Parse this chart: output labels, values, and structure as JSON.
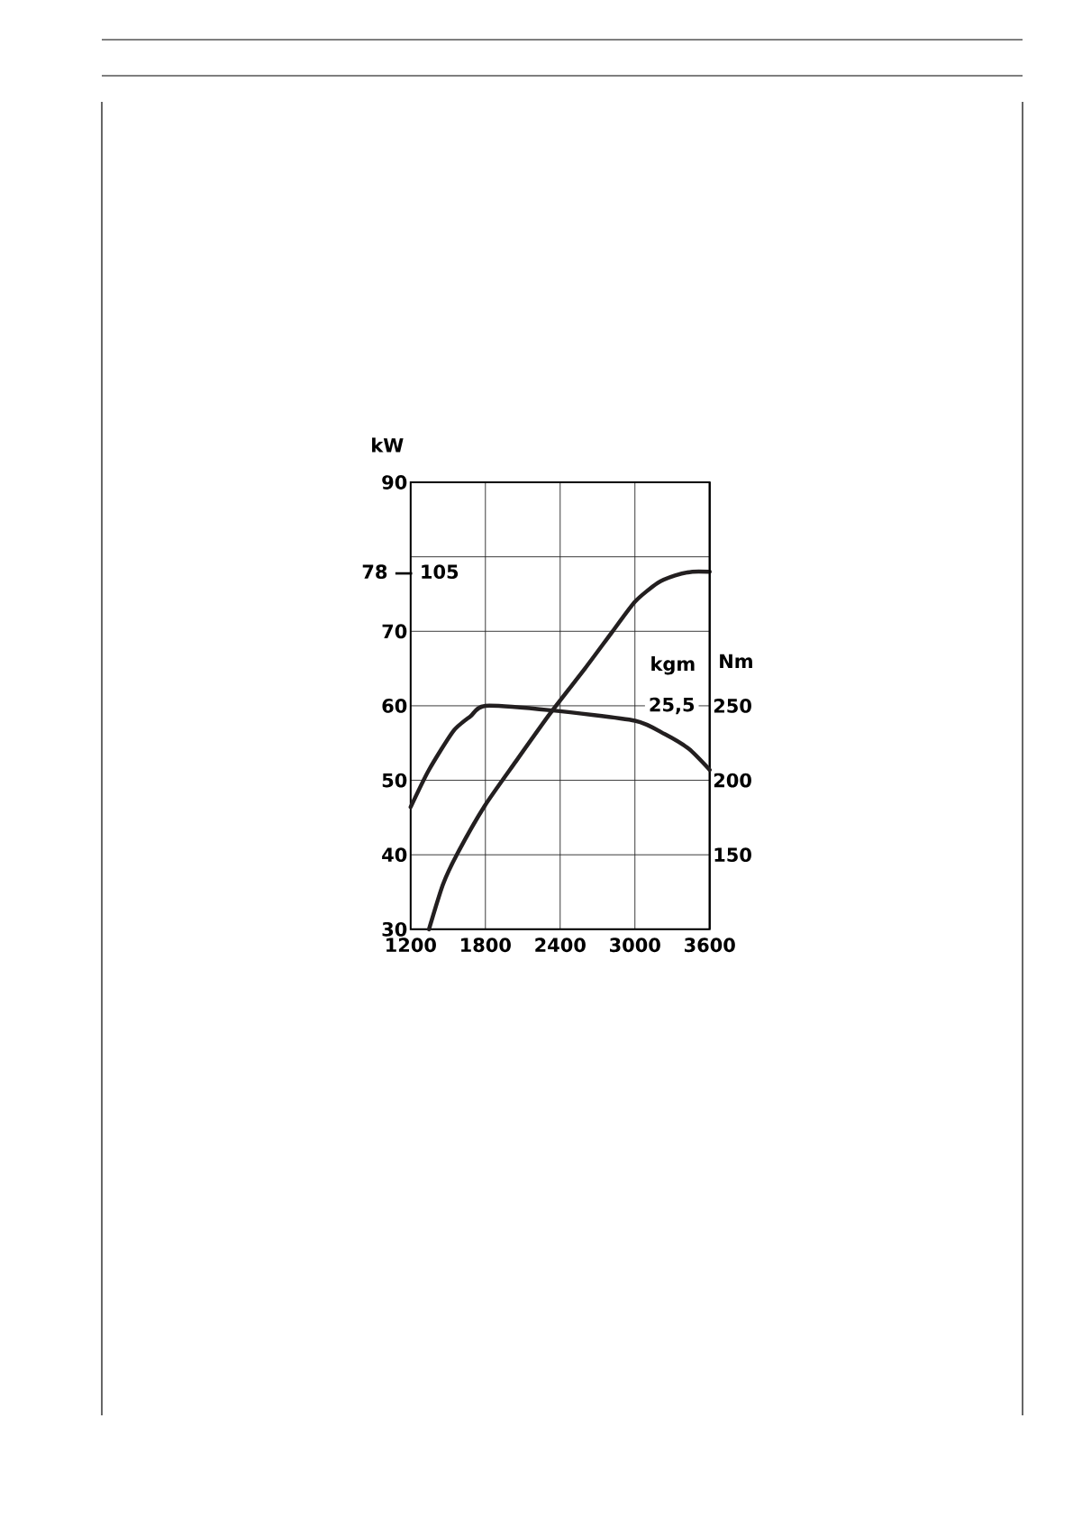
{
  "chart_data": {
    "type": "line",
    "ylabel": "kW",
    "y2label": "Nm",
    "xlim": [
      1200,
      3600
    ],
    "xticks": [
      1200,
      1800,
      2400,
      3000,
      3600
    ],
    "ylim": [
      30,
      90
    ],
    "yticks": [
      30,
      40,
      50,
      60,
      70,
      {
        "value": 80,
        "label": null
      },
      90
    ],
    "y2lim": [
      100,
      400
    ],
    "y2ticks": [
      150,
      200,
      250
    ],
    "grid": true,
    "line_style": "solid",
    "color": "#231f20",
    "series": [
      {
        "x": [
          1347,
          1459,
          1570,
          1792,
          2043,
          2321,
          2599,
          2821,
          3002,
          3183,
          3322,
          3461,
          3600
        ],
        "values": [
          30,
          36,
          40,
          46.5,
          52.5,
          59,
          65,
          70,
          74,
          76.5,
          77.5,
          78,
          78
        ]
      },
      {
        "axis": "y2",
        "x": [
          1200,
          1347,
          1542,
          1681,
          1800,
          2321,
          3000,
          3239,
          3434,
          3600
        ],
        "values": [
          182,
          207,
          233,
          243,
          250,
          247,
          240,
          231,
          221,
          207
        ]
      }
    ],
    "annotations": [
      "78 — 105",
      "25,5",
      "kgm"
    ]
  }
}
